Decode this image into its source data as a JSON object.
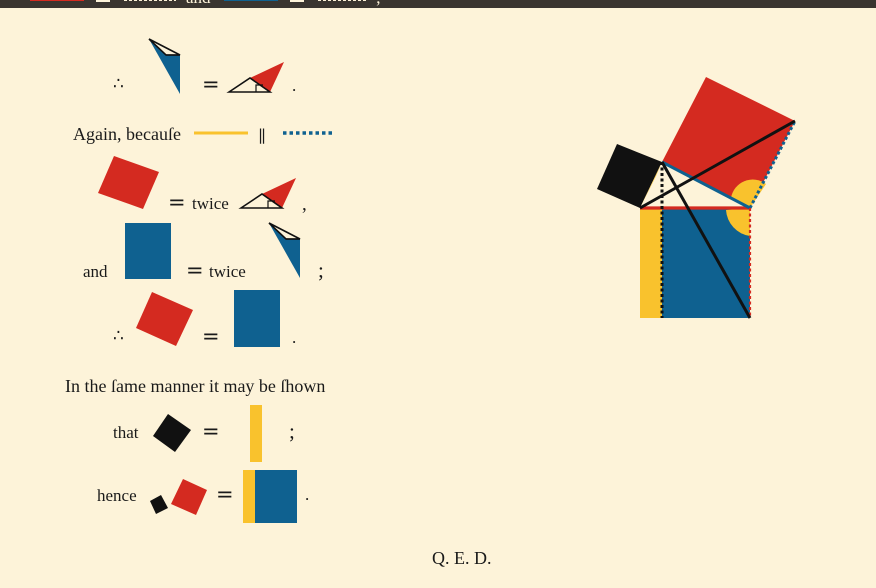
{
  "colors": {
    "background": "#fdf3d9",
    "red": "#d42a20",
    "blue": "#0f6190",
    "yellow": "#f9c22d",
    "black": "#111111"
  },
  "top_fragment": {
    "word": "and",
    "punct": ";"
  },
  "line1": {
    "therefore": "∴",
    "equals": "=",
    "period": "."
  },
  "line2": {
    "text": "Again, becauſe",
    "parallel": "||"
  },
  "line3": {
    "equals": "=",
    "twice": "twice",
    "comma": ","
  },
  "line4": {
    "and": "and",
    "equals": "=",
    "twice": "twice",
    "semicolon": ";"
  },
  "line5": {
    "therefore": "∴",
    "equals": "=",
    "period": "."
  },
  "line6": {
    "text": "In the ſame manner it may be ſhown"
  },
  "line7": {
    "that": "that",
    "equals": "=",
    "semicolon": ";"
  },
  "line8": {
    "hence": "hence",
    "equals": "=",
    "period": "."
  },
  "qed": "Q. E. D."
}
